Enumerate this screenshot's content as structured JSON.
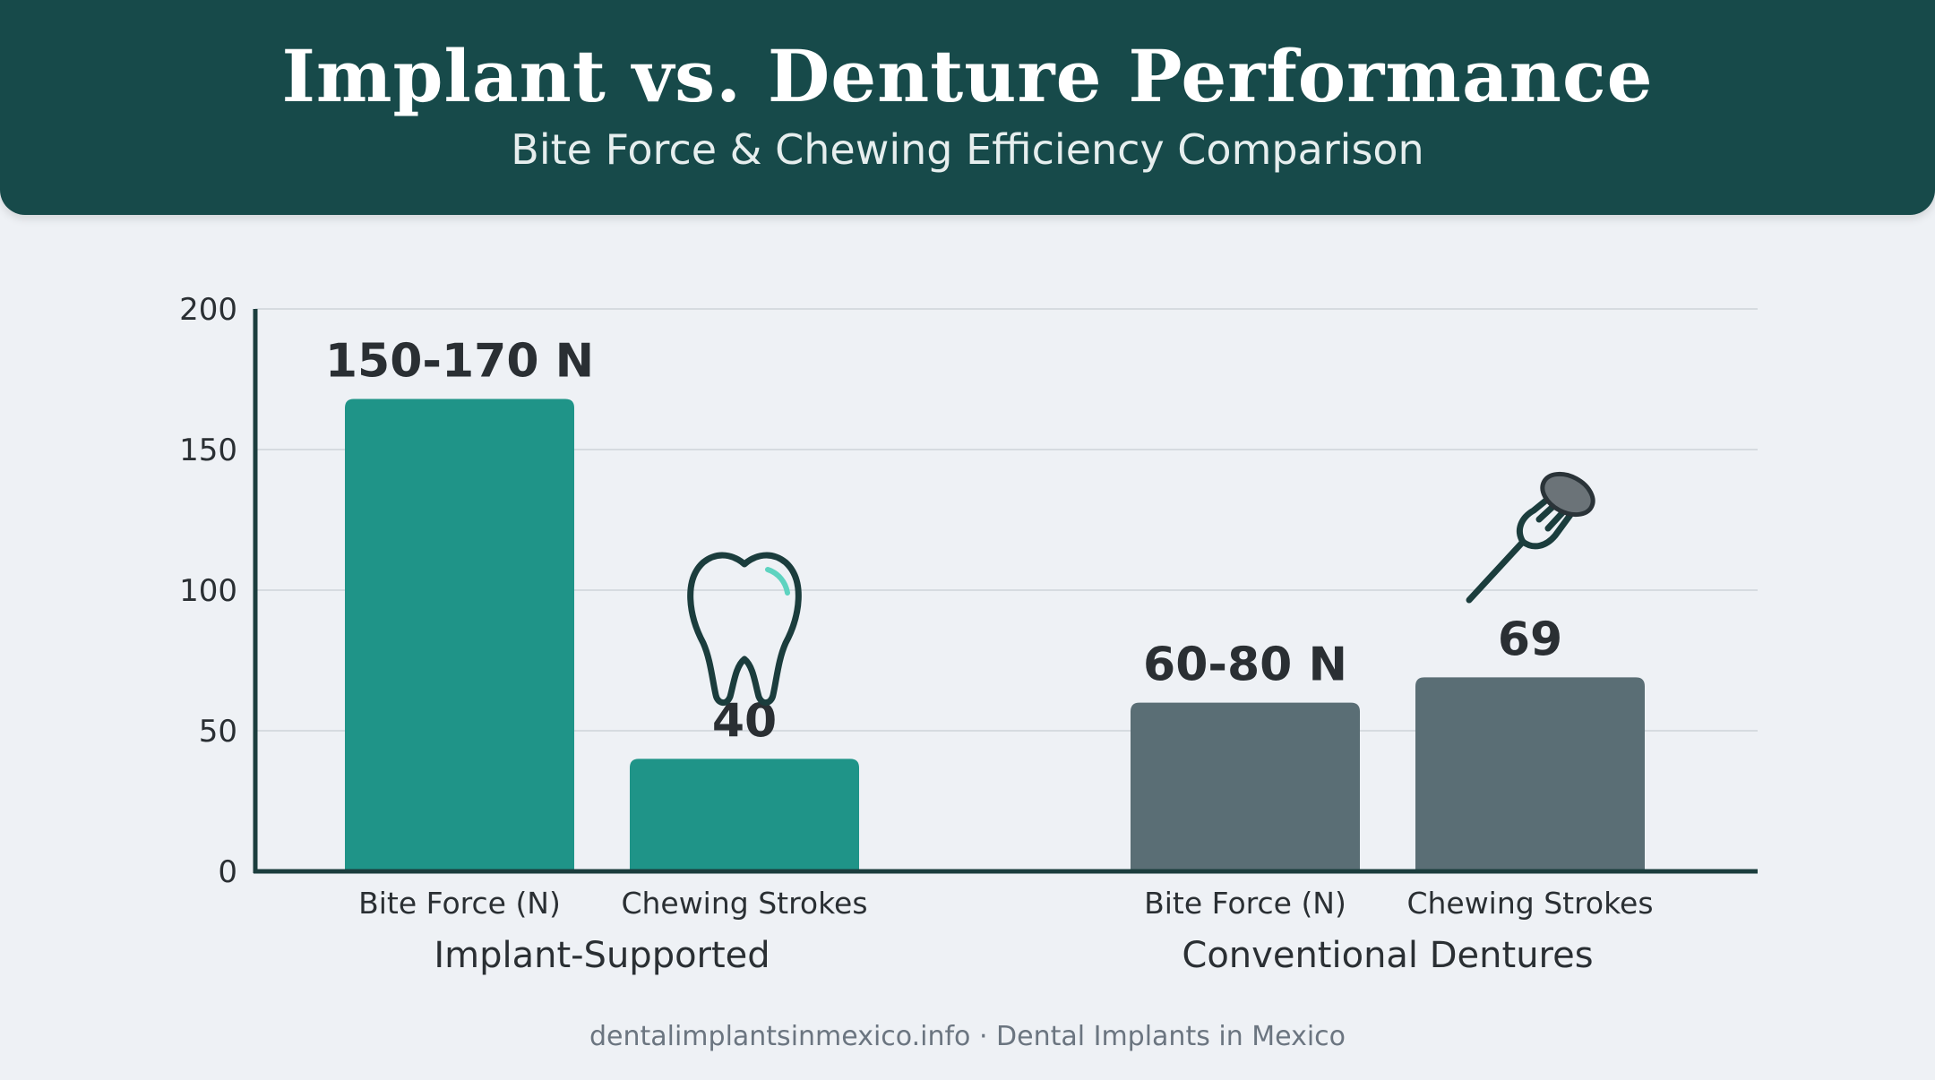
{
  "header": {
    "title": "Implant vs. Denture Performance",
    "subtitle": "Bite Force & Chewing Efficiency Comparison"
  },
  "footer": {
    "text": "dentalimplantsinmexico.info · Dental Implants in Mexico"
  },
  "colors": {
    "header_bg": "#174a4a",
    "implant": "#1f9488",
    "denture": "#5a6e75",
    "axis": "#1b3d3d",
    "grid": "#d6dbe0",
    "label": "#2a2f33"
  },
  "icons": {
    "tooth": "tooth-icon",
    "fork": "fork-icon"
  },
  "chart_data": {
    "type": "bar",
    "ylim": [
      0,
      200
    ],
    "yticks": [
      0,
      50,
      100,
      150,
      200
    ],
    "grid": true,
    "groups": [
      {
        "name": "Implant-Supported",
        "color": "#1f9488",
        "bars": [
          {
            "label": "Bite Force (N)",
            "value": 168,
            "data_label": "150-170 N"
          },
          {
            "label": "Chewing Strokes",
            "value": 40,
            "data_label": "40"
          }
        ]
      },
      {
        "name": "Conventional Dentures",
        "color": "#5a6e75",
        "bars": [
          {
            "label": "Bite Force (N)",
            "value": 60,
            "data_label": "60-80 N"
          },
          {
            "label": "Chewing Strokes",
            "value": 69,
            "data_label": "69"
          }
        ]
      }
    ]
  }
}
